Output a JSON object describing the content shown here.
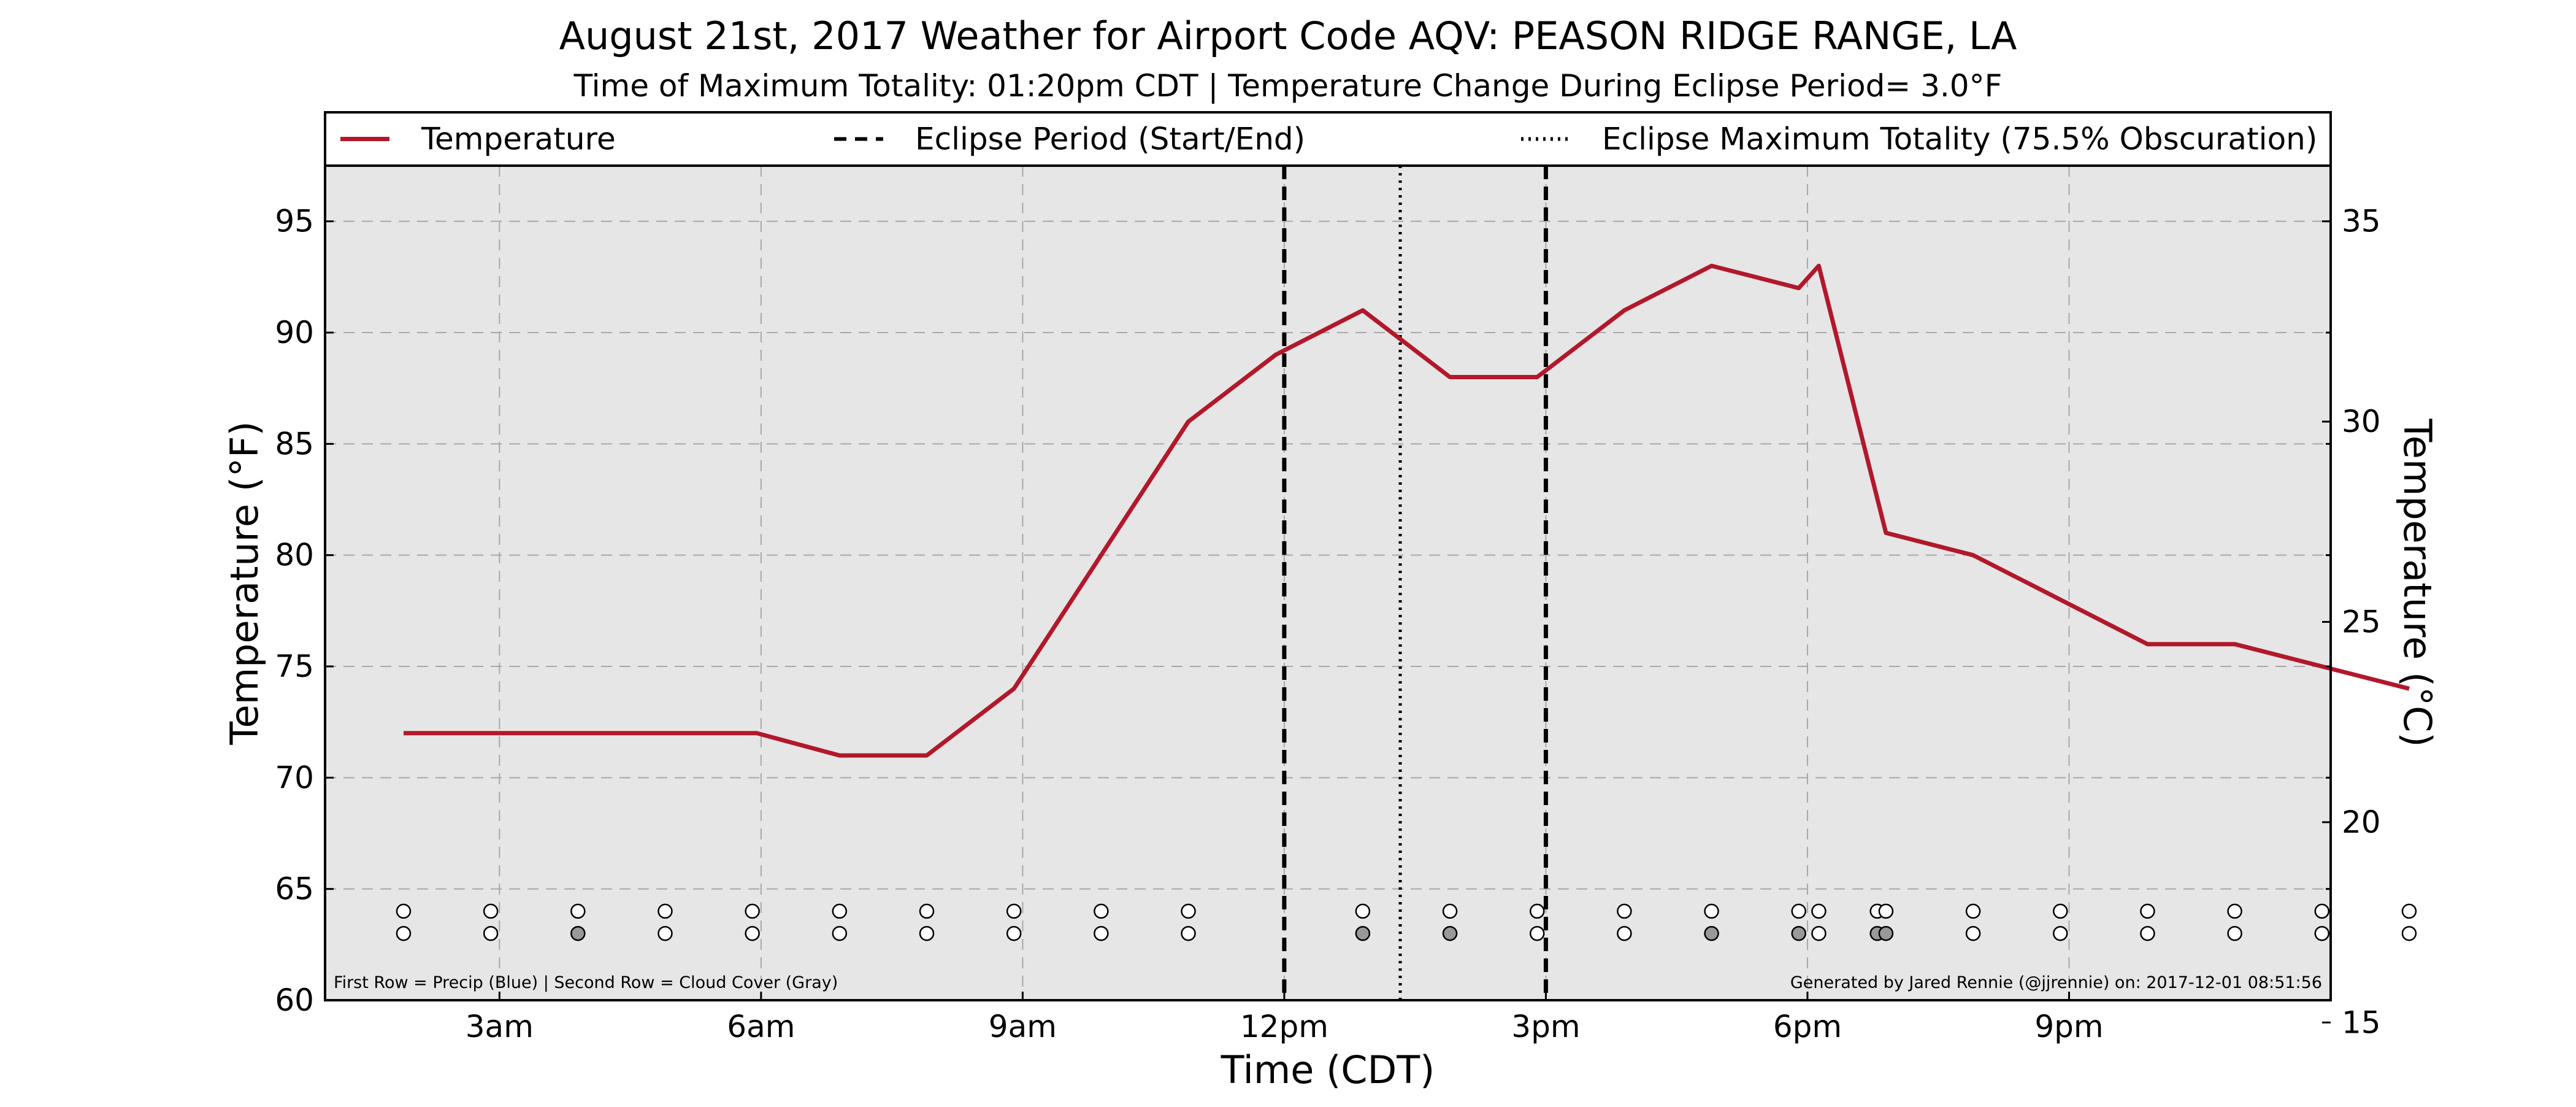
{
  "chart_data": {
    "type": "line",
    "title": "August 21st, 2017 Weather for Airport Code AQV: PEASON RIDGE RANGE, LA",
    "subtitle": "Time of Maximum Totality: 01:20pm CDT | Temperature Change During Eclipse Period= 3.0°F",
    "xlabel": "Time (CDT)",
    "ylabel": "Temperature (°F)",
    "ylabel_right": "Temperature (°C)",
    "x_tick_labels": [
      {
        "hour": 3,
        "label": "3am"
      },
      {
        "hour": 6,
        "label": "6am"
      },
      {
        "hour": 9,
        "label": "9am"
      },
      {
        "hour": 12,
        "label": "12pm"
      },
      {
        "hour": 15,
        "label": "3pm"
      },
      {
        "hour": 18,
        "label": "6pm"
      },
      {
        "hour": 21,
        "label": "9pm"
      }
    ],
    "x_range_hours": [
      1,
      24
    ],
    "y_ticks_f": [
      60,
      65,
      70,
      75,
      80,
      85,
      90,
      95
    ],
    "ylim_f": [
      60,
      97.5
    ],
    "y_ticks_c": [
      15,
      20,
      25,
      30,
      35
    ],
    "grid": true,
    "legend_position": "top",
    "legend": [
      {
        "label": "Temperature",
        "style": "solid",
        "color": "#b2182b"
      },
      {
        "label": "Eclipse Period (Start/End)",
        "style": "dashed",
        "color": "#000000"
      },
      {
        "label": "Eclipse Maximum Totality (75.5% Obscuration)",
        "style": "dotted",
        "color": "#000000"
      }
    ],
    "series": [
      {
        "name": "Temperature",
        "color": "#b2182b",
        "points": [
          {
            "hour": 1.9,
            "temp_f": 72
          },
          {
            "hour": 5.9,
            "temp_f": 72
          },
          {
            "hour": 5.95,
            "temp_f": 72
          },
          {
            "hour": 6.9,
            "temp_f": 71
          },
          {
            "hour": 7.9,
            "temp_f": 71
          },
          {
            "hour": 8.9,
            "temp_f": 74
          },
          {
            "hour": 9.9,
            "temp_f": 80
          },
          {
            "hour": 10.9,
            "temp_f": 86
          },
          {
            "hour": 11.9,
            "temp_f": 89
          },
          {
            "hour": 12.9,
            "temp_f": 91
          },
          {
            "hour": 13.9,
            "temp_f": 88
          },
          {
            "hour": 14.9,
            "temp_f": 88
          },
          {
            "hour": 15.9,
            "temp_f": 91
          },
          {
            "hour": 16.9,
            "temp_f": 93
          },
          {
            "hour": 17.9,
            "temp_f": 92
          },
          {
            "hour": 18.13,
            "temp_f": 93
          },
          {
            "hour": 18.9,
            "temp_f": 81
          },
          {
            "hour": 19.9,
            "temp_f": 80
          },
          {
            "hour": 20.9,
            "temp_f": 78
          },
          {
            "hour": 21.9,
            "temp_f": 76
          },
          {
            "hour": 22.9,
            "temp_f": 76
          },
          {
            "hour": 23.9,
            "temp_f": 75
          },
          {
            "hour": 24.9,
            "temp_f": 74
          }
        ]
      }
    ],
    "eclipse_start_hour": 12.0,
    "eclipse_max_hour": 13.33,
    "eclipse_end_hour": 15.0,
    "precip_row_hours": [
      1.9,
      2.9,
      3.9,
      4.9,
      5.9,
      6.9,
      7.9,
      8.9,
      9.9,
      10.9,
      12.9,
      13.9,
      14.9,
      15.9,
      16.9,
      17.9,
      18.13,
      18.8,
      18.9,
      19.9,
      20.9,
      21.9,
      22.9,
      23.9,
      24.9
    ],
    "cloud_row": [
      {
        "hour": 1.9,
        "fill": "#ffffff"
      },
      {
        "hour": 2.9,
        "fill": "#ffffff"
      },
      {
        "hour": 3.9,
        "fill": "#999999"
      },
      {
        "hour": 4.9,
        "fill": "#ffffff"
      },
      {
        "hour": 5.9,
        "fill": "#ffffff"
      },
      {
        "hour": 6.9,
        "fill": "#ffffff"
      },
      {
        "hour": 7.9,
        "fill": "#ffffff"
      },
      {
        "hour": 8.9,
        "fill": "#ffffff"
      },
      {
        "hour": 9.9,
        "fill": "#ffffff"
      },
      {
        "hour": 10.9,
        "fill": "#ffffff"
      },
      {
        "hour": 12.9,
        "fill": "#999999"
      },
      {
        "hour": 13.9,
        "fill": "#999999"
      },
      {
        "hour": 14.9,
        "fill": "#ffffff"
      },
      {
        "hour": 15.9,
        "fill": "#ffffff"
      },
      {
        "hour": 16.9,
        "fill": "#999999"
      },
      {
        "hour": 17.9,
        "fill": "#999999"
      },
      {
        "hour": 18.13,
        "fill": "#ffffff"
      },
      {
        "hour": 18.8,
        "fill": "#999999"
      },
      {
        "hour": 18.9,
        "fill": "#999999"
      },
      {
        "hour": 19.9,
        "fill": "#ffffff"
      },
      {
        "hour": 20.9,
        "fill": "#ffffff"
      },
      {
        "hour": 21.9,
        "fill": "#ffffff"
      },
      {
        "hour": 22.9,
        "fill": "#ffffff"
      },
      {
        "hour": 23.9,
        "fill": "#ffffff"
      },
      {
        "hour": 24.9,
        "fill": "#ffffff"
      }
    ],
    "annotations": {
      "rows_note": "First Row = Precip (Blue) | Second Row = Cloud Cover (Gray)",
      "credit": "Generated by Jared Rennie (@jjrennie) on: 2017-12-01 08:51:56"
    }
  }
}
